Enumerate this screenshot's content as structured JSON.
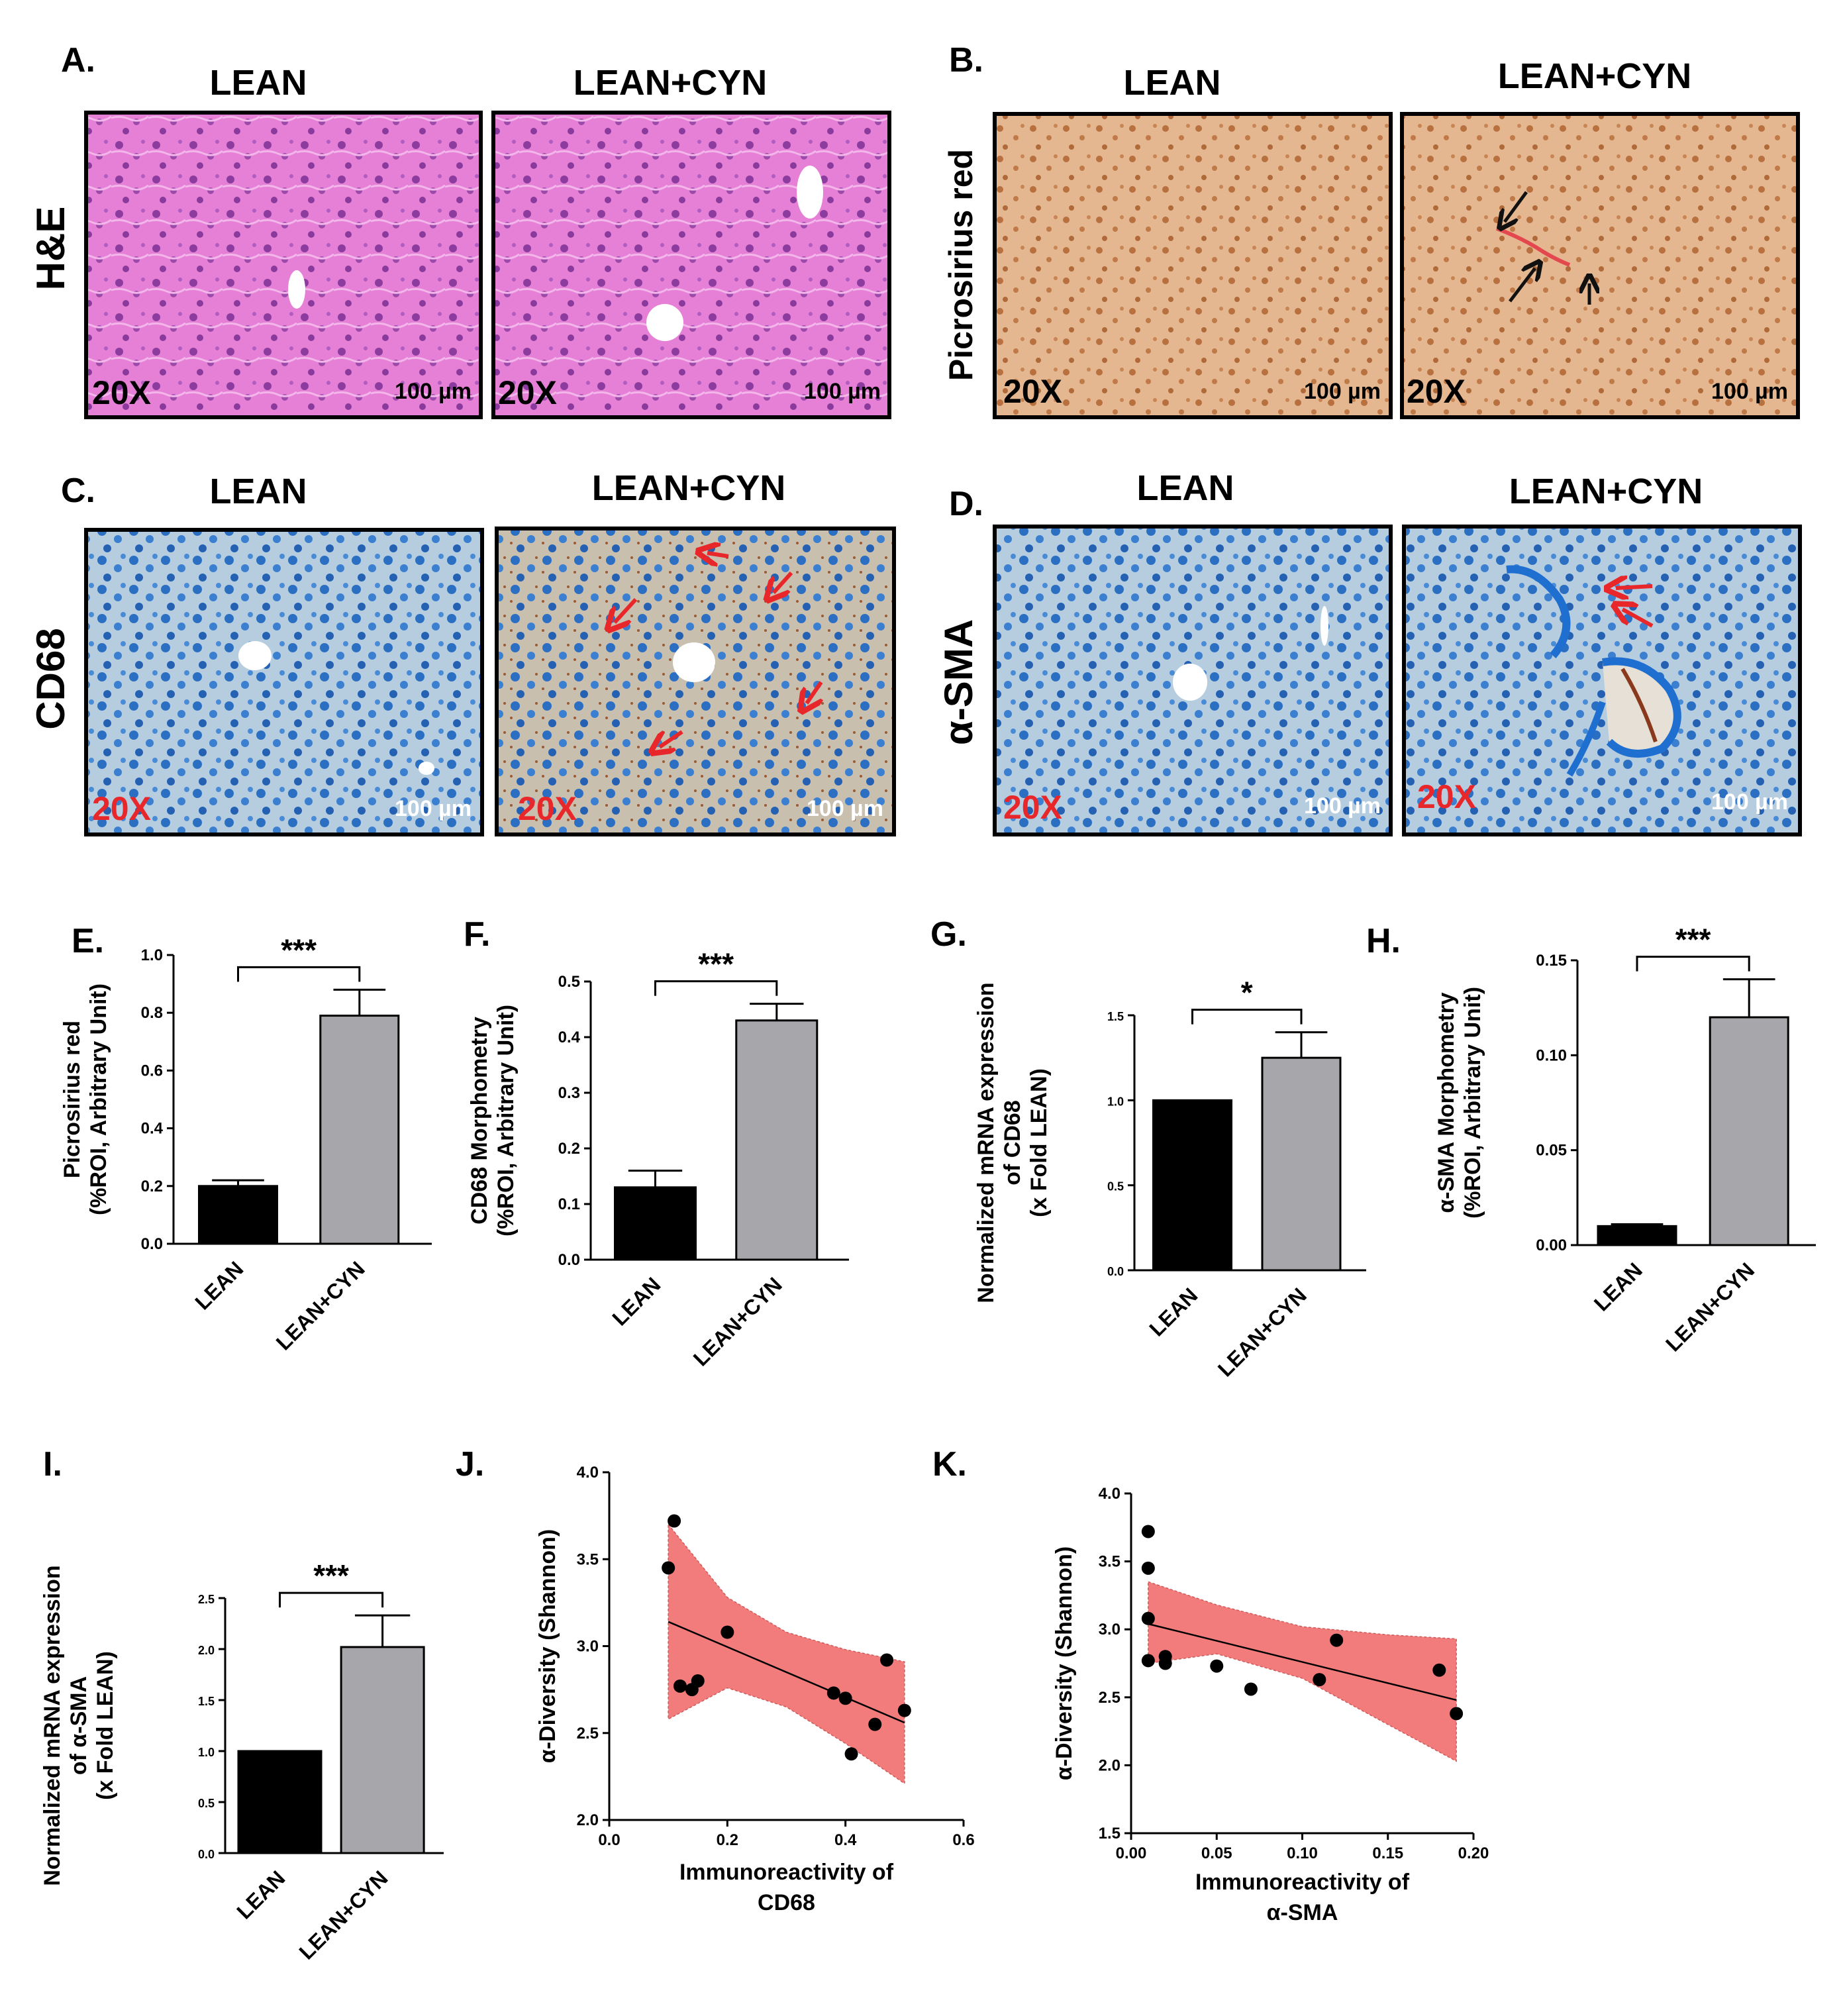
{
  "rows": {
    "he": "H&E",
    "picro": "Picrosirius red",
    "cd68": "CD68",
    "asma": "α-SMA"
  },
  "panels": {
    "A": {
      "label": "A.",
      "left": "LEAN",
      "right": "LEAN+CYN"
    },
    "B": {
      "label": "B.",
      "left": "LEAN",
      "right": "LEAN+CYN"
    },
    "C": {
      "label": "C.",
      "left": "LEAN",
      "right": "LEAN+CYN"
    },
    "D": {
      "label": "D.",
      "left": "LEAN",
      "right": "LEAN+CYN"
    }
  },
  "micro": {
    "magnification": "20X",
    "scale_bar": "100 µm",
    "colors": {
      "he": "#e47fd3",
      "picro": "#e0b08c",
      "ihc": "#a6c4dc",
      "arrow_black": "#111111",
      "arrow_red": "#e8272a",
      "mag_red": "#e8272a"
    }
  },
  "bar_labels": {
    "E": "E.",
    "F": "F.",
    "G": "G.",
    "H": "H.",
    "I": "I."
  },
  "scatter_labels": {
    "J": "J.",
    "K": "K."
  },
  "chart_data": [
    {
      "id": "E",
      "type": "bar",
      "categories": [
        "LEAN",
        "LEAN+CYN"
      ],
      "values": [
        0.2,
        0.79
      ],
      "errors": [
        0.02,
        0.09
      ],
      "ylabel_lines": [
        "Picrosirius red",
        "(%ROI, Arbitrary Unit)"
      ],
      "ylim": [
        0,
        1.0
      ],
      "ticks": [
        "0.0",
        "0.2",
        "0.4",
        "0.6",
        "0.8",
        "1.0"
      ],
      "significance": "***",
      "colors": [
        "#000000",
        "#a7a6ab"
      ]
    },
    {
      "id": "F",
      "type": "bar",
      "categories": [
        "LEAN",
        "LEAN+CYN"
      ],
      "values": [
        0.13,
        0.43
      ],
      "errors": [
        0.03,
        0.03
      ],
      "ylabel_lines": [
        "CD68 Morphometry",
        "(%ROI, Arbitrary Unit)"
      ],
      "ylim": [
        0,
        0.5
      ],
      "ticks": [
        "0.0",
        "0.1",
        "0.2",
        "0.3",
        "0.4",
        "0.5"
      ],
      "significance": "***",
      "colors": [
        "#000000",
        "#a7a6ab"
      ]
    },
    {
      "id": "G",
      "type": "bar",
      "categories": [
        "LEAN",
        "LEAN+CYN"
      ],
      "values": [
        1.0,
        1.25
      ],
      "errors": [
        0,
        0.15
      ],
      "ylabel_lines": [
        "Normalized mRNA expression",
        "of CD68",
        "(x Fold LEAN)"
      ],
      "ylim": [
        0,
        1.5
      ],
      "ticks": [
        "0.0",
        "0.5",
        "1.0",
        "1.5"
      ],
      "significance": "*",
      "colors": [
        "#000000",
        "#a7a6ab"
      ]
    },
    {
      "id": "H",
      "type": "bar",
      "categories": [
        "LEAN",
        "LEAN+CYN"
      ],
      "values": [
        0.01,
        0.12
      ],
      "errors": [
        0.001,
        0.02
      ],
      "ylabel_lines": [
        "α-SMA Morphometry",
        "(%ROI, Arbitrary Unit)"
      ],
      "ylim": [
        0,
        0.15
      ],
      "ticks": [
        "0.00",
        "0.05",
        "0.10",
        "0.15"
      ],
      "significance": "***",
      "colors": [
        "#000000",
        "#a7a6ab"
      ]
    },
    {
      "id": "I",
      "type": "bar",
      "categories": [
        "LEAN",
        "LEAN+CYN"
      ],
      "values": [
        1.0,
        2.02
      ],
      "errors": [
        0,
        0.31
      ],
      "ylabel_lines": [
        "Normalized mRNA expression",
        "of α-SMA",
        "(x Fold LEAN)"
      ],
      "ylim": [
        0,
        2.5
      ],
      "ticks": [
        "0.0",
        "0.5",
        "1.0",
        "1.5",
        "2.0",
        "2.5"
      ],
      "significance": "***",
      "colors": [
        "#000000",
        "#a7a6ab"
      ]
    },
    {
      "id": "J",
      "type": "scatter",
      "points": [
        [
          0.1,
          3.45
        ],
        [
          0.11,
          3.72
        ],
        [
          0.12,
          2.77
        ],
        [
          0.14,
          2.75
        ],
        [
          0.15,
          2.8
        ],
        [
          0.2,
          3.08
        ],
        [
          0.38,
          2.73
        ],
        [
          0.4,
          2.7
        ],
        [
          0.41,
          2.38
        ],
        [
          0.45,
          2.55
        ],
        [
          0.47,
          2.92
        ],
        [
          0.5,
          2.63
        ]
      ],
      "fit": {
        "x": [
          0.1,
          0.5
        ],
        "y": [
          3.14,
          2.56
        ]
      },
      "band": {
        "x": [
          0.1,
          0.2,
          0.3,
          0.4,
          0.5
        ],
        "upper": [
          3.7,
          3.28,
          3.08,
          2.98,
          2.91
        ],
        "lower": [
          2.58,
          2.76,
          2.65,
          2.44,
          2.21
        ]
      },
      "xlabel_lines": [
        "Immunoreactivity of",
        "CD68"
      ],
      "ylabel": "α-Diversity (Shannon)",
      "xlim": [
        0,
        0.6
      ],
      "ylim": [
        2.0,
        4.0
      ],
      "xticks": [
        "0.0",
        "0.2",
        "0.4",
        "0.6"
      ],
      "yticks": [
        "2.0",
        "2.5",
        "3.0",
        "3.5",
        "4.0"
      ],
      "band_color": "#f27b7b"
    },
    {
      "id": "K",
      "type": "scatter",
      "points": [
        [
          0.01,
          3.72
        ],
        [
          0.01,
          3.45
        ],
        [
          0.01,
          3.08
        ],
        [
          0.01,
          2.77
        ],
        [
          0.02,
          2.8
        ],
        [
          0.02,
          2.75
        ],
        [
          0.05,
          2.73
        ],
        [
          0.07,
          2.56
        ],
        [
          0.11,
          2.63
        ],
        [
          0.12,
          2.92
        ],
        [
          0.18,
          2.7
        ],
        [
          0.19,
          2.38
        ]
      ],
      "fit": {
        "x": [
          0.01,
          0.19
        ],
        "y": [
          3.04,
          2.48
        ]
      },
      "band": {
        "x": [
          0.01,
          0.05,
          0.1,
          0.15,
          0.19
        ],
        "upper": [
          3.35,
          3.18,
          3.02,
          2.96,
          2.93
        ],
        "lower": [
          2.75,
          2.82,
          2.64,
          2.3,
          2.03
        ]
      },
      "xlabel_lines": [
        "Immunoreactivity of",
        "α-SMA"
      ],
      "ylabel": "α-Diversity (Shannon)",
      "xlim": [
        0,
        0.2
      ],
      "ylim": [
        1.5,
        4.0
      ],
      "xticks": [
        "0.00",
        "0.05",
        "0.10",
        "0.15",
        "0.20"
      ],
      "yticks": [
        "1.5",
        "2.0",
        "2.5",
        "3.0",
        "3.5",
        "4.0"
      ],
      "band_color": "#f27b7b"
    }
  ]
}
